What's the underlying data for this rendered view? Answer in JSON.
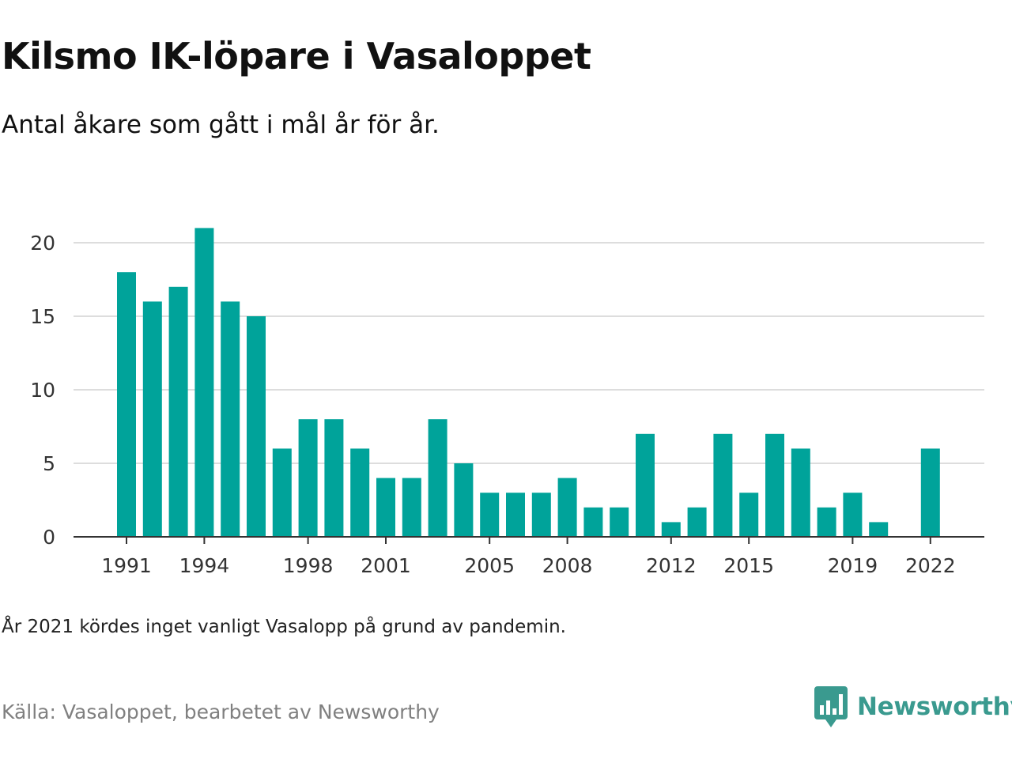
{
  "title": "Kilsmo IK-löpare i Vasaloppet",
  "subtitle": "Antal åkare som gått i mål år för år.",
  "note": "År 2021 kördes inget vanligt Vasalopp på grund av pandemin.",
  "source": "Källa: Vasaloppet, bearbetet av Newsworthy",
  "brand": {
    "name": "Newsworthy",
    "icon": "newsworthy-logo-icon",
    "color": "#3a9a8f"
  },
  "chart_data": {
    "type": "bar",
    "title": "Kilsmo IK-löpare i Vasaloppet",
    "subtitle": "Antal åkare som gått i mål år för år.",
    "xlabel": "",
    "ylabel": "",
    "ylim": [
      0,
      21
    ],
    "yticks": [
      0,
      5,
      10,
      15,
      20
    ],
    "xticks": [
      1991,
      1994,
      1998,
      2001,
      2005,
      2008,
      2012,
      2015,
      2019,
      2022
    ],
    "grid": true,
    "legend": "none",
    "bar_color": "#00a39a",
    "categories": [
      1991,
      1992,
      1993,
      1994,
      1995,
      1996,
      1997,
      1998,
      1999,
      2000,
      2001,
      2002,
      2003,
      2004,
      2005,
      2006,
      2007,
      2008,
      2009,
      2010,
      2011,
      2012,
      2013,
      2014,
      2015,
      2016,
      2017,
      2018,
      2019,
      2020,
      2021,
      2022
    ],
    "values": [
      18,
      16,
      17,
      21,
      16,
      15,
      6,
      8,
      8,
      6,
      4,
      4,
      8,
      5,
      3,
      3,
      3,
      4,
      2,
      2,
      7,
      1,
      2,
      7,
      3,
      7,
      6,
      2,
      3,
      1,
      0,
      6
    ]
  }
}
